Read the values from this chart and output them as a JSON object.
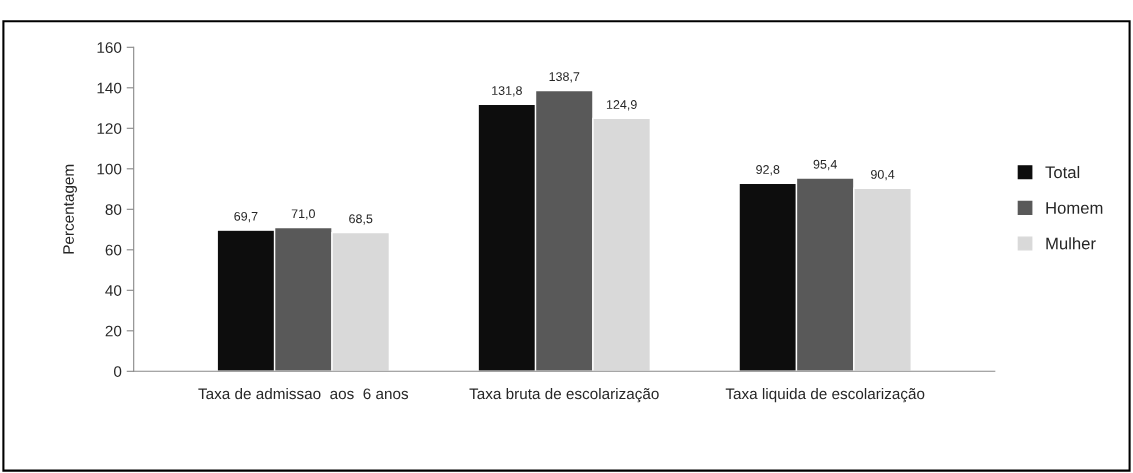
{
  "chart_data": {
    "type": "bar",
    "ylabel": "Percentagem",
    "categories": [
      "Taxa de admissao  aos  6 anos",
      "Taxa bruta de escolarização",
      "Taxa liquida de escolarização"
    ],
    "series": [
      {
        "name": "Total",
        "color": "#0d0d0d",
        "values": [
          69.7,
          131.8,
          92.8
        ],
        "value_labels": [
          "69,7",
          "131,8",
          "92,8"
        ]
      },
      {
        "name": "Homem",
        "color": "#595959",
        "values": [
          71.0,
          138.7,
          95.4
        ],
        "value_labels": [
          "71,0",
          "138,7",
          "95,4"
        ]
      },
      {
        "name": "Mulher",
        "color": "#d9d9d9",
        "values": [
          68.5,
          124.9,
          90.4
        ],
        "value_labels": [
          "68,5",
          "124,9",
          "90,4"
        ]
      }
    ],
    "ylim": [
      0,
      160
    ],
    "yticks": [
      0,
      20,
      40,
      60,
      80,
      100,
      120,
      140,
      160
    ],
    "grid": false,
    "legend": "right"
  }
}
